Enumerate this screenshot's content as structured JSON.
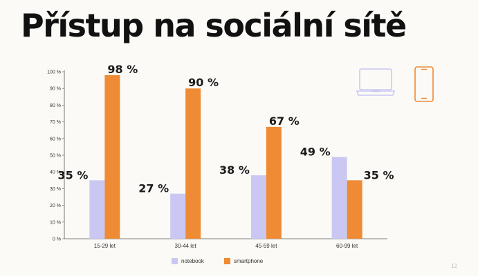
{
  "title": "Přístup na sociální sítě",
  "page_number": "12",
  "icons": [
    "laptop-icon",
    "smartphone-icon"
  ],
  "chart_data": {
    "type": "bar",
    "title": "",
    "xlabel": "",
    "ylabel": "",
    "ylim": [
      0,
      100
    ],
    "yticks": [
      "0 %",
      "10 %",
      "20 %",
      "30 %",
      "40 %",
      "50 %",
      "60 %",
      "70 %",
      "80 %",
      "90 %",
      "100 %"
    ],
    "categories": [
      "15-29 let",
      "30-44 let",
      "45-59 let",
      "60-99 let"
    ],
    "series": [
      {
        "name": "notebook",
        "color": "#cac8f3",
        "values": [
          35,
          27,
          38,
          49
        ],
        "labels": [
          "35 %",
          "27 %",
          "38 %",
          "49 %"
        ]
      },
      {
        "name": "smartphone",
        "color": "#ef8a35",
        "values": [
          98,
          90,
          67,
          35
        ],
        "labels": [
          "98 %",
          "90 %",
          "67 %",
          "35 %"
        ]
      }
    ],
    "legend": "bottom-center",
    "grid": false
  }
}
